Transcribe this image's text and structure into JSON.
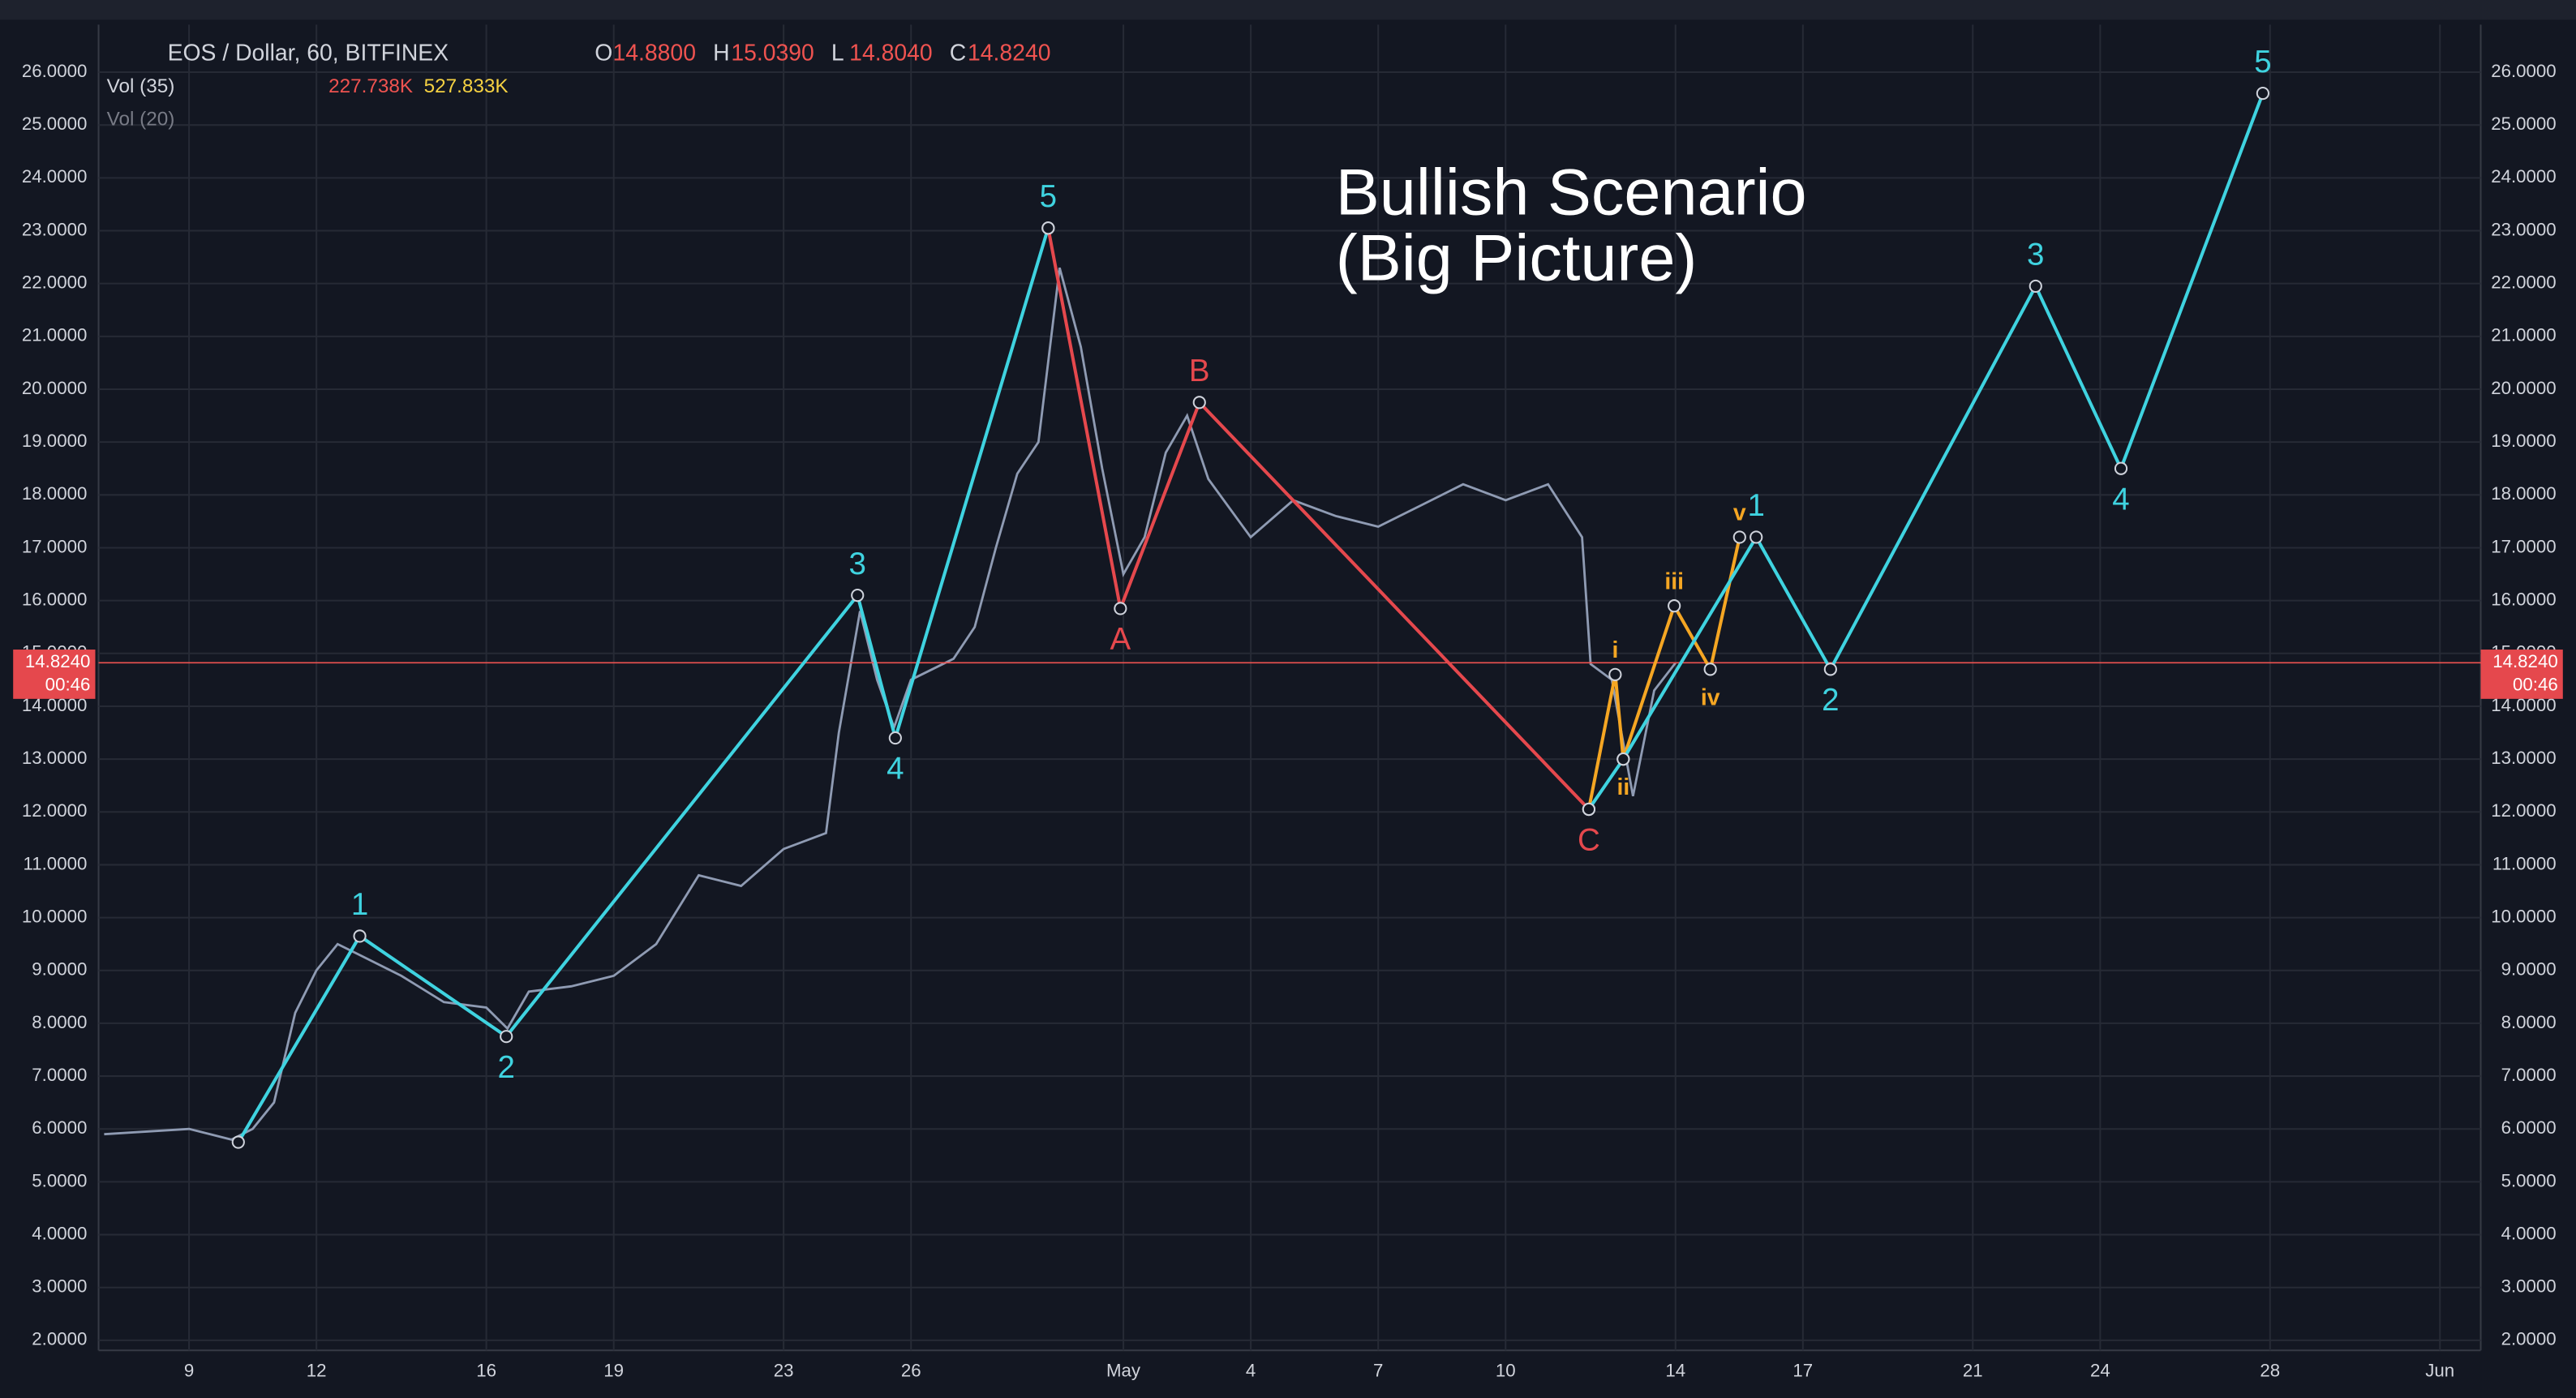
{
  "chart_data": {
    "type": "line",
    "title": "EOS / Dollar, 60, BITFINEX",
    "ohlc": {
      "labels": [
        "O",
        "H",
        "L",
        "C"
      ],
      "values": [
        14.88,
        15.039,
        14.804,
        14.824
      ],
      "value_labels": [
        "14.8800",
        "15.0390",
        "14.8040",
        "14.8240"
      ]
    },
    "indicators": [
      {
        "name": "Vol (35)",
        "readings": [
          "227.738K",
          "527.833K"
        ]
      },
      {
        "name": "Vol (20)",
        "readings": []
      }
    ],
    "annotation": [
      "Bullish Scenario",
      "(Big Picture)"
    ],
    "last_price": {
      "value": 14.824,
      "label": "14.8240",
      "countdown": "00:46"
    },
    "color": "#8f9bb3",
    "x": [
      7,
      8,
      9,
      10,
      10.5,
      11,
      11.5,
      12,
      12.5,
      13,
      14,
      15,
      16,
      16.5,
      17,
      18,
      19,
      20,
      21,
      22,
      23,
      24,
      24.3,
      24.8,
      25.2,
      25.6,
      26,
      27,
      27.5,
      28,
      28.5,
      29,
      29.5,
      30,
      30.5,
      31,
      31.5,
      32,
      32.5,
      33,
      34,
      35,
      36,
      37,
      38,
      39,
      40,
      41,
      41.8,
      42,
      42.5,
      43,
      43.5,
      44
    ],
    "values": [
      5.9,
      5.95,
      6.0,
      5.8,
      6.0,
      6.5,
      8.2,
      9.0,
      9.5,
      9.3,
      8.9,
      8.4,
      8.3,
      7.9,
      8.6,
      8.7,
      8.9,
      9.5,
      10.8,
      10.6,
      11.3,
      11.6,
      13.5,
      15.8,
      14.5,
      13.6,
      14.5,
      14.9,
      15.5,
      17.0,
      18.4,
      19.0,
      22.3,
      20.8,
      18.5,
      16.5,
      17.2,
      18.8,
      19.5,
      18.3,
      17.2,
      17.9,
      17.6,
      17.4,
      17.8,
      18.2,
      17.9,
      18.2,
      17.2,
      14.8,
      14.5,
      12.3,
      14.3,
      14.82
    ],
    "waves": [
      {
        "color": "#3fd3e0",
        "x": [
          10.16,
          13.02,
          16.47,
          24.74,
          25.63,
          29.23
        ],
        "values": [
          5.75,
          9.65,
          7.75,
          16.1,
          13.4,
          23.05
        ],
        "labels": [
          null,
          "1",
          "2",
          "3",
          "4",
          "5"
        ]
      },
      {
        "color": "#e5484d",
        "x": [
          29.23,
          30.93,
          32.79,
          41.96
        ],
        "values": [
          23.05,
          15.85,
          19.75,
          12.05
        ],
        "labels": [
          null,
          "A",
          "B",
          "C"
        ]
      },
      {
        "color": "#f5a623",
        "x": [
          41.96,
          42.58,
          42.77,
          43.97,
          44.82,
          45.51
        ],
        "values": [
          12.05,
          14.6,
          13.0,
          15.9,
          14.7,
          17.2
        ],
        "labels": [
          null,
          "i",
          "ii",
          "iii",
          "iv",
          "v"
        ]
      },
      {
        "color": "#3fd3e0",
        "x": [
          41.96,
          42.77,
          45.9,
          47.65,
          52.48,
          54.49,
          57.83
        ],
        "values": [
          12.05,
          13.0,
          17.2,
          14.7,
          21.95,
          18.5,
          25.6
        ],
        "labels": [
          null,
          null,
          "1",
          "2",
          "3",
          "4",
          "5"
        ]
      }
    ],
    "xlim": [
      6.87,
      62.96
    ],
    "xticks": [
      {
        "value": 9,
        "label": "9"
      },
      {
        "value": 12,
        "label": "12"
      },
      {
        "value": 16,
        "label": "16"
      },
      {
        "value": 19,
        "label": "19"
      },
      {
        "value": 23,
        "label": "23"
      },
      {
        "value": 26,
        "label": "26"
      },
      {
        "value": 31,
        "label": "May"
      },
      {
        "value": 34,
        "label": "4"
      },
      {
        "value": 37,
        "label": "7"
      },
      {
        "value": 40,
        "label": "10"
      },
      {
        "value": 44,
        "label": "14"
      },
      {
        "value": 47,
        "label": "17"
      },
      {
        "value": 51,
        "label": "21"
      },
      {
        "value": 54,
        "label": "24"
      },
      {
        "value": 58,
        "label": "28"
      },
      {
        "value": 62,
        "label": "Jun"
      }
    ],
    "ylim": [
      1.81,
      26.9
    ],
    "yticks": [
      {
        "value": 2,
        "label": "2.0000"
      },
      {
        "value": 3,
        "label": "3.0000"
      },
      {
        "value": 4,
        "label": "4.0000"
      },
      {
        "value": 5,
        "label": "5.0000"
      },
      {
        "value": 6,
        "label": "6.0000"
      },
      {
        "value": 7,
        "label": "7.0000"
      },
      {
        "value": 8,
        "label": "8.0000"
      },
      {
        "value": 9,
        "label": "9.0000"
      },
      {
        "value": 10,
        "label": "10.0000"
      },
      {
        "value": 11,
        "label": "11.0000"
      },
      {
        "value": 12,
        "label": "12.0000"
      },
      {
        "value": 13,
        "label": "13.0000"
      },
      {
        "value": 14,
        "label": "14.0000"
      },
      {
        "value": 15,
        "label": "15.0000"
      },
      {
        "value": 16,
        "label": "16.0000"
      },
      {
        "value": 17,
        "label": "17.0000"
      },
      {
        "value": 18,
        "label": "18.0000"
      },
      {
        "value": 19,
        "label": "19.0000"
      },
      {
        "value": 20,
        "label": "20.0000"
      },
      {
        "value": 21,
        "label": "21.0000"
      },
      {
        "value": 22,
        "label": "22.0000"
      },
      {
        "value": 23,
        "label": "23.0000"
      },
      {
        "value": 24,
        "label": "24.0000"
      },
      {
        "value": 25,
        "label": "25.0000"
      },
      {
        "value": 26,
        "label": "26.0000"
      }
    ],
    "grid": true
  }
}
